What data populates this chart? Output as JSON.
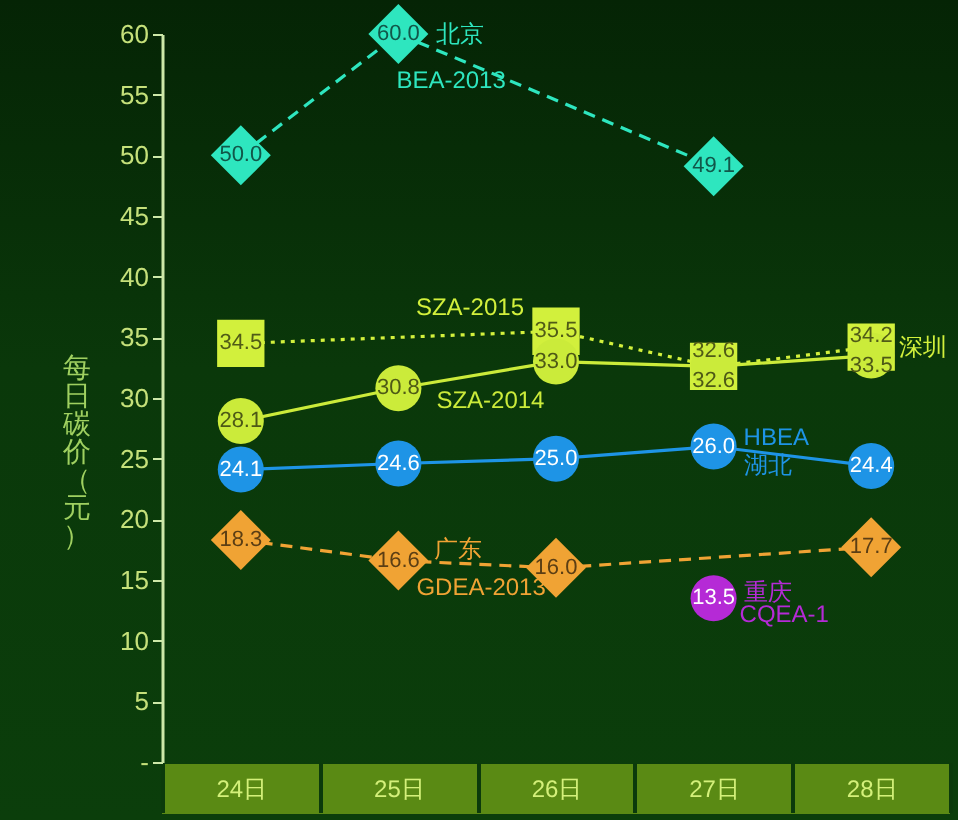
{
  "chart_data": {
    "type": "line",
    "ylabel": "每日碳价（元）",
    "categories": [
      "24日",
      "25日",
      "26日",
      "27日",
      "28日"
    ],
    "ylim": [
      0,
      60
    ],
    "yticks": [
      {
        "value": 0,
        "label": "-"
      },
      5,
      10,
      15,
      20,
      25,
      30,
      35,
      40,
      45,
      50,
      55,
      60
    ],
    "series": [
      {
        "name": "BEA-2013",
        "color": "#2ee6bf",
        "marker": "diamond",
        "line_style": "dashed",
        "values": [
          50.0,
          60.0,
          null,
          49.1,
          null
        ],
        "value_labels": [
          "50.0",
          "60.0",
          null,
          "49.1",
          null
        ]
      },
      {
        "name": "SZA-2015",
        "color": "#d2f03c",
        "marker": "square",
        "line_style": "dotted",
        "values": [
          34.5,
          null,
          35.5,
          32.6,
          34.2
        ],
        "value_labels": [
          "34.5",
          null,
          "35.5",
          "32.6",
          "34.2"
        ]
      },
      {
        "name": "SZA-2014",
        "color": "#cbeb3a",
        "marker": "circle",
        "line_style": "solid",
        "values": [
          28.1,
          30.8,
          33.0,
          32.6,
          33.5
        ],
        "value_labels": [
          "28.1",
          "30.8",
          "33.0",
          "32.6",
          "33.5"
        ]
      },
      {
        "name": "HBEA",
        "color": "#1e94e6",
        "marker": "circle",
        "line_style": "solid",
        "values": [
          24.1,
          24.6,
          25.0,
          26.0,
          24.4
        ],
        "value_labels": [
          "24.1",
          "24.6",
          "25.0",
          "26.0",
          "24.4"
        ]
      },
      {
        "name": "GDEA-2013",
        "color": "#f0a334",
        "marker": "diamond",
        "line_style": "dashed",
        "values": [
          18.3,
          16.6,
          16.0,
          null,
          17.7
        ],
        "value_labels": [
          "18.3",
          "16.6",
          "16.0",
          null,
          "17.7"
        ]
      },
      {
        "name": "CQEA-1",
        "type": "scatter",
        "color": "#b52ad6",
        "marker": "circle",
        "values": [
          null,
          null,
          null,
          13.5,
          null
        ],
        "value_labels": [
          null,
          null,
          null,
          "13.5",
          null
        ]
      }
    ],
    "annotations": [
      {
        "text": "北京",
        "x": "25日",
        "y": 60.0
      },
      {
        "text": "深圳",
        "x": "28日",
        "y": 34.2
      },
      {
        "text": "湖北",
        "x": "27日",
        "y": 26.0
      },
      {
        "text": "广东",
        "x": "25日",
        "y": 16.6
      },
      {
        "text": "重庆",
        "x": "27日",
        "y": 13.5
      }
    ]
  }
}
